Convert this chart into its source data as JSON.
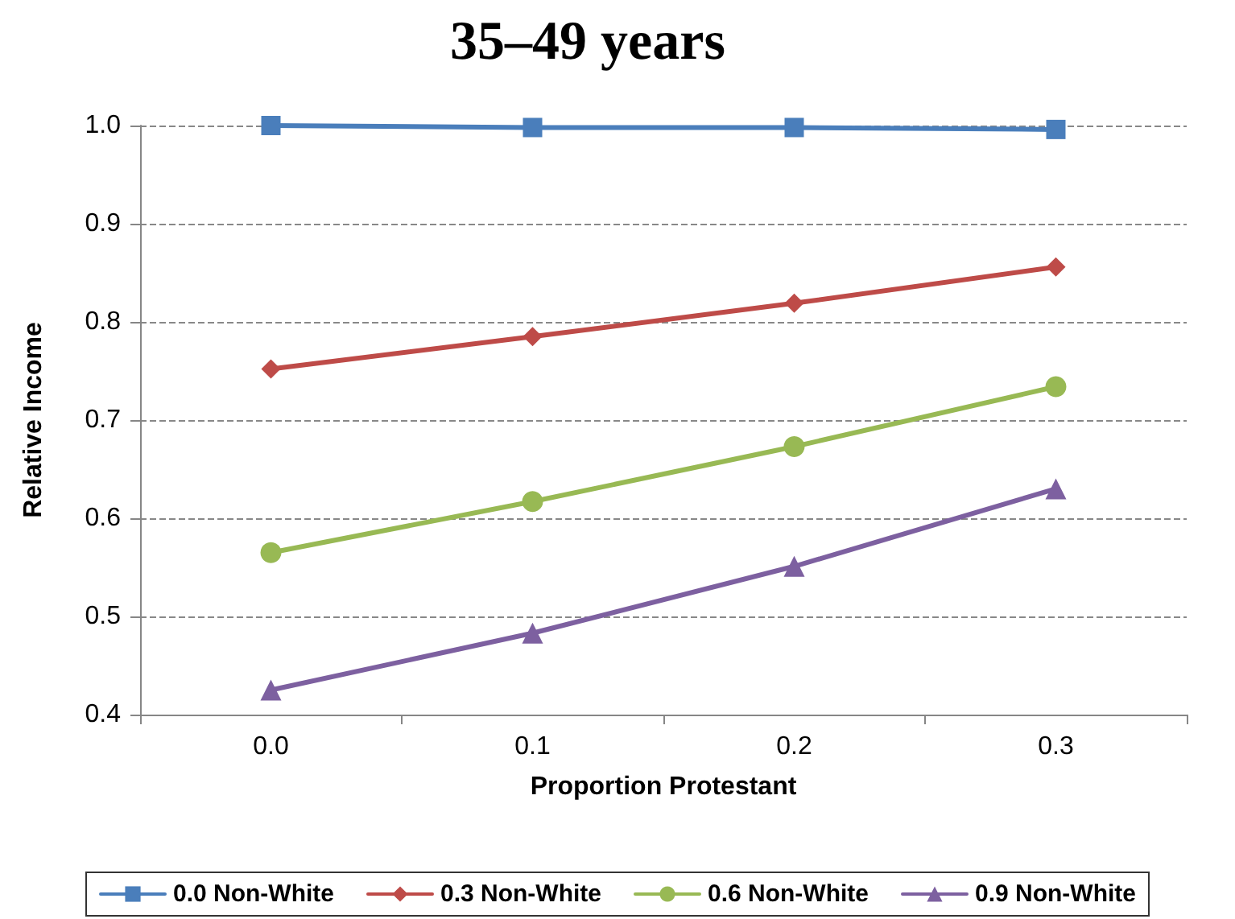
{
  "chart_data": {
    "type": "line",
    "title": "35–49 years",
    "xlabel": "Proportion Protestant",
    "ylabel": "Relative Income",
    "categories": [
      "0.0",
      "0.1",
      "0.2",
      "0.3"
    ],
    "series": [
      {
        "name": "0.0 Non-White",
        "color": "#4a7ebb",
        "marker": "square",
        "values": [
          1.0,
          0.998,
          0.998,
          0.996
        ]
      },
      {
        "name": "0.3 Non-White",
        "color": "#be4b48",
        "marker": "diamond",
        "values": [
          0.752,
          0.785,
          0.819,
          0.856
        ]
      },
      {
        "name": "0.6 Non-White",
        "color": "#98b954",
        "marker": "circle",
        "values": [
          0.565,
          0.617,
          0.673,
          0.734
        ]
      },
      {
        "name": "0.9 Non-White",
        "color": "#7d60a0",
        "marker": "triangle",
        "values": [
          0.425,
          0.483,
          0.551,
          0.63
        ]
      }
    ],
    "ylim": [
      0.4,
      1.0
    ],
    "yticks": [
      {
        "value": 0.4,
        "label": "0.4"
      },
      {
        "value": 0.5,
        "label": "0.5"
      },
      {
        "value": 0.6,
        "label": "0.6"
      },
      {
        "value": 0.7,
        "label": "0.7"
      },
      {
        "value": 0.8,
        "label": "0.8"
      },
      {
        "value": 0.9,
        "label": "0.9"
      },
      {
        "value": 1.0,
        "label": "1.0"
      }
    ],
    "grid": "y",
    "legend": "bottom",
    "line_style": "solid"
  }
}
